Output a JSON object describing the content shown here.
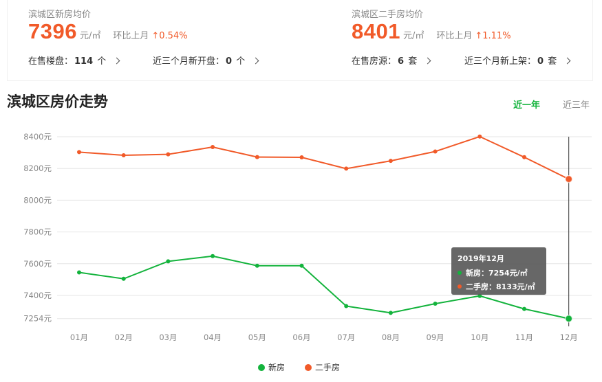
{
  "stats": {
    "new_home": {
      "label": "滨城区新房均价",
      "price": "7396",
      "unit": "元/㎡",
      "mom_label": "环比上月",
      "mom_value": "↑0.54%",
      "listing_label": "在售楼盘：",
      "listing_count": "114",
      "listing_unit": "个",
      "recent_label": "近三个月新开盘：",
      "recent_count": "0",
      "recent_unit": "个"
    },
    "second_hand": {
      "label": "滨城区二手房均价",
      "price": "8401",
      "unit": "元/㎡",
      "mom_label": "环比上月",
      "mom_value": "↑1.11%",
      "listing_label": "在售房源：",
      "listing_count": "6",
      "listing_unit": "套",
      "recent_label": "近三个月新上架：",
      "recent_count": "0",
      "recent_unit": "套"
    }
  },
  "section": {
    "title": "滨城区房价走势",
    "range_options": [
      "近一年",
      "近三年"
    ],
    "selected_range": "近一年"
  },
  "colors": {
    "new_home": "#13b33c",
    "second_hand": "#f15a29",
    "accent_red": "#f15a29",
    "accent_green": "#13b33c"
  },
  "tooltip": {
    "title": "2019年12月",
    "rows": [
      "新房：7254元/㎡",
      "二手房：8133元/㎡"
    ]
  },
  "chart_data": {
    "type": "line",
    "categories": [
      "01月",
      "02月",
      "03月",
      "04月",
      "05月",
      "06月",
      "07月",
      "08月",
      "09月",
      "10月",
      "11月",
      "12月"
    ],
    "series": [
      {
        "name": "新房",
        "values": [
          7545,
          7505,
          7615,
          7648,
          7587,
          7587,
          7333,
          7290,
          7348,
          7397,
          7315,
          7254
        ]
      },
      {
        "name": "二手房",
        "values": [
          8303,
          8283,
          8289,
          8335,
          8272,
          8270,
          8199,
          8248,
          8307,
          8401,
          8271,
          8133
        ]
      }
    ],
    "yticks": [
      {
        "value": 8400,
        "label": "8400元"
      },
      {
        "value": 8200,
        "label": "8200元"
      },
      {
        "value": 8000,
        "label": "8000元"
      },
      {
        "value": 7800,
        "label": "7800元"
      },
      {
        "value": 7600,
        "label": "7600元"
      },
      {
        "value": 7400,
        "label": "7400元"
      },
      {
        "value": 7254,
        "label": "7254元"
      }
    ],
    "ylim": [
      7254,
      8400
    ],
    "grid": true,
    "legend_position": "bottom-center",
    "highlighted_index": 11
  }
}
